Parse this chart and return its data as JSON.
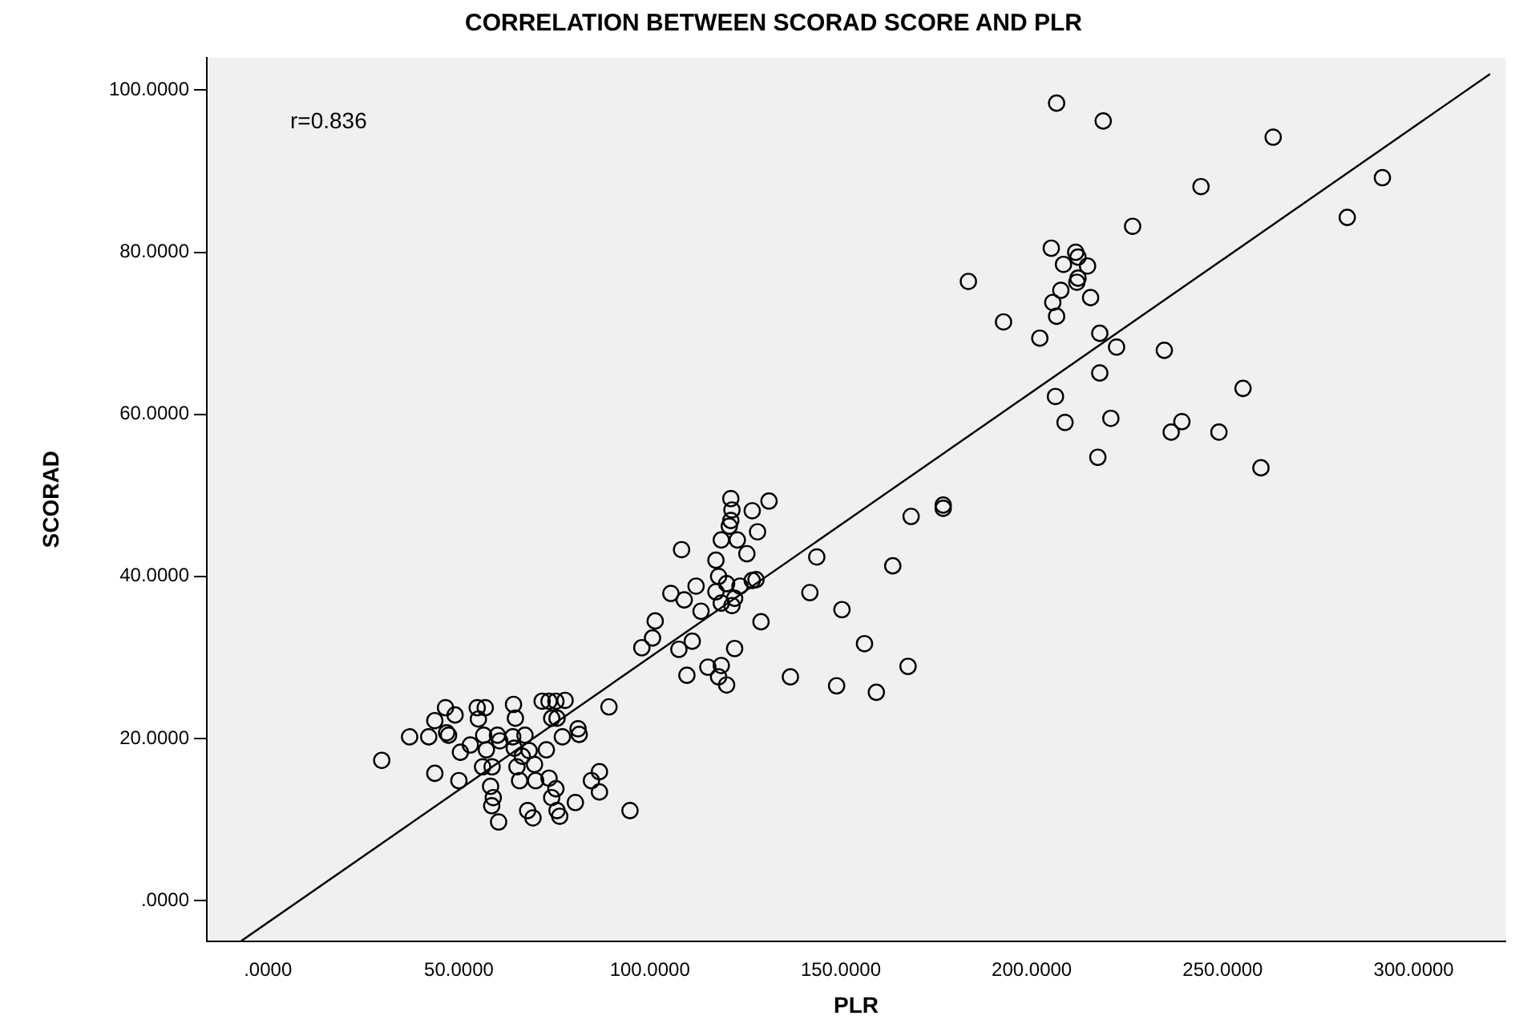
{
  "chart_data": {
    "type": "scatter",
    "title": "CORRELATION BETWEEN SCORAD SCORE AND PLR",
    "xlabel": "PLR",
    "ylabel": "SCORAD",
    "annotations": [
      "r=0.836"
    ],
    "legend": false,
    "xlim": [
      -16,
      324
    ],
    "ylim": [
      -5,
      104
    ],
    "xticks": [
      {
        "value": 0,
        "label": ".0000"
      },
      {
        "value": 50,
        "label": "50.0000"
      },
      {
        "value": 100,
        "label": "100.0000"
      },
      {
        "value": 150,
        "label": "150.0000"
      },
      {
        "value": 200,
        "label": "200.0000"
      },
      {
        "value": 250,
        "label": "250.0000"
      },
      {
        "value": 300,
        "label": "300.0000"
      }
    ],
    "yticks": [
      {
        "value": 0,
        "label": ".0000"
      },
      {
        "value": 20,
        "label": "20.0000"
      },
      {
        "value": 40,
        "label": "40.0000"
      },
      {
        "value": 60,
        "label": "60.0000"
      },
      {
        "value": 80,
        "label": "80.0000"
      },
      {
        "value": 100,
        "label": "100.0000"
      }
    ],
    "series": [
      {
        "color": "#000000",
        "marker": "circle",
        "x": [
          29.8,
          37.1,
          42.1,
          43.7,
          43.7,
          46.5,
          46.8,
          47.3,
          49.0,
          50.0,
          50.4,
          53.0,
          54.8,
          55.1,
          56.5,
          56.9,
          56.2,
          57.2,
          58.3,
          58.7,
          59.0,
          58.6,
          60.4,
          60.1,
          60.7,
          64.3,
          64.8,
          64.1,
          64.5,
          65.2,
          65.9,
          66.6,
          67.3,
          68.0,
          68.4,
          69.4,
          69.8,
          70.1,
          71.8,
          73.6,
          74.3,
          75.4,
          75.7,
          72.9,
          73.6,
          74.3,
          75.4,
          75.7,
          76.4,
          77.1,
          77.8,
          80.5,
          81.2,
          81.5,
          84.7,
          86.8,
          86.8,
          89.3,
          94.8,
          121.2,
          121.5,
          121.2,
          120.8,
          131.2,
          126.8,
          128.2,
          118.7,
          122.9,
          125.4,
          108.3,
          117.3,
          118.0,
          120.1,
          123.6,
          126.8,
          127.8,
          112.1,
          105.5,
          109.0,
          113.4,
          117.3,
          118.7,
          121.5,
          122.2,
          101.4,
          100.7,
          97.9,
          107.6,
          111.1,
          122.2,
          129.1,
          109.7,
          115.2,
          118.7,
          118.0,
          120.1,
          136.8,
          143.7,
          141.9,
          150.3,
          156.2,
          148.9,
          159.3,
          167.6,
          163.6,
          168.4,
          176.8,
          176.8,
          206.5,
          218.7,
          263.2,
          244.3,
          226.4,
          291.8,
          282.6,
          205.1,
          211.5,
          212.1,
          208.3,
          214.6,
          212.1,
          211.8,
          207.6,
          215.4,
          205.5,
          206.5,
          183.4,
          192.6,
          202.1,
          217.8,
          222.2,
          234.7,
          217.8,
          206.2,
          255.3,
          208.7,
          220.7,
          239.3,
          236.5,
          249.0,
          217.3,
          260.0
        ],
        "values": [
          17.3,
          20.2,
          20.2,
          22.2,
          15.7,
          23.8,
          20.7,
          20.4,
          22.9,
          14.8,
          18.3,
          19.2,
          23.8,
          22.4,
          20.4,
          23.8,
          16.5,
          18.6,
          14.1,
          16.5,
          12.7,
          11.7,
          9.7,
          20.4,
          19.7,
          24.2,
          22.5,
          20.2,
          18.8,
          16.5,
          14.8,
          17.8,
          20.4,
          11.1,
          18.5,
          10.2,
          16.8,
          14.8,
          24.6,
          24.6,
          22.5,
          24.6,
          22.5,
          18.6,
          15.1,
          12.7,
          13.8,
          11.1,
          10.4,
          20.2,
          24.7,
          12.1,
          21.2,
          20.5,
          14.8,
          15.9,
          13.4,
          23.9,
          11.1,
          49.6,
          48.2,
          46.9,
          46.2,
          49.3,
          48.1,
          45.5,
          44.5,
          44.5,
          42.8,
          43.3,
          42.0,
          40.0,
          39.1,
          38.8,
          39.5,
          39.6,
          38.8,
          37.9,
          37.1,
          35.7,
          38.1,
          36.7,
          36.4,
          37.3,
          34.5,
          32.4,
          31.2,
          31.0,
          32.0,
          31.1,
          34.4,
          27.8,
          28.8,
          29.0,
          27.6,
          26.6,
          27.6,
          42.4,
          38.0,
          35.9,
          31.7,
          26.5,
          25.7,
          28.9,
          41.3,
          47.4,
          48.8,
          48.4,
          98.4,
          96.2,
          94.2,
          88.1,
          83.2,
          89.2,
          84.3,
          80.5,
          80.0,
          79.4,
          78.5,
          78.3,
          76.8,
          76.3,
          75.3,
          74.4,
          73.8,
          72.1,
          76.4,
          71.4,
          69.4,
          70.0,
          68.3,
          67.9,
          65.1,
          62.2,
          63.2,
          59.0,
          59.5,
          59.1,
          57.8,
          57.8,
          54.7,
          53.4
        ]
      },
      {
        "type": "line",
        "marker": "none",
        "color": "#000000",
        "x": [
          -7,
          320
        ],
        "values": [
          -5.0,
          102.0
        ]
      }
    ]
  }
}
